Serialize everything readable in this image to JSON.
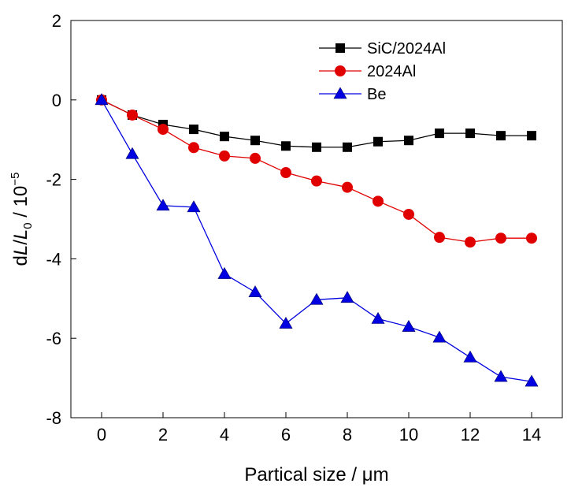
{
  "chart_data": {
    "type": "line",
    "title": "",
    "xlabel": "Partical size / μm",
    "ylabel": {
      "prefix": "d",
      "L": "L",
      "slash": "/",
      "L0": "L",
      "sub0": "0",
      "unit": " / 10",
      "exp": "−5"
    },
    "xlim": [
      -1,
      15
    ],
    "ylim": [
      -8,
      2
    ],
    "xticks": [
      0,
      2,
      4,
      6,
      8,
      10,
      12,
      14
    ],
    "yticks": [
      2,
      0,
      -2,
      -4,
      -6,
      -8
    ],
    "xtick_labels": [
      "0",
      "2",
      "4",
      "6",
      "8",
      "10",
      "12",
      "14"
    ],
    "ytick_labels": [
      "2",
      "0",
      "-2",
      "-4",
      "-6",
      "-8"
    ],
    "x": [
      0,
      1,
      2,
      3,
      4,
      5,
      6,
      7,
      8,
      9,
      10,
      11,
      12,
      13,
      14
    ],
    "legend_position": "top-right",
    "grid": false,
    "series": [
      {
        "name": "SiC/2024Al",
        "color": "#000000",
        "marker": "square",
        "values": [
          0,
          -0.38,
          -0.62,
          -0.74,
          -0.92,
          -1.02,
          -1.16,
          -1.19,
          -1.19,
          -1.05,
          -1.02,
          -0.84,
          -0.84,
          -0.9,
          -0.9
        ]
      },
      {
        "name": "2024Al",
        "color": "#e00000",
        "marker": "circle",
        "values": [
          0,
          -0.38,
          -0.74,
          -1.2,
          -1.41,
          -1.47,
          -1.83,
          -2.04,
          -2.2,
          -2.55,
          -2.88,
          -3.46,
          -3.58,
          -3.48,
          -3.48
        ]
      },
      {
        "name": "Be",
        "color": "#0000e0",
        "marker": "triangle",
        "values": [
          0,
          -1.36,
          -2.66,
          -2.7,
          -4.38,
          -4.84,
          -5.63,
          -5.03,
          -4.98,
          -5.51,
          -5.71,
          -5.98,
          -6.48,
          -6.97,
          -7.09
        ]
      }
    ]
  }
}
